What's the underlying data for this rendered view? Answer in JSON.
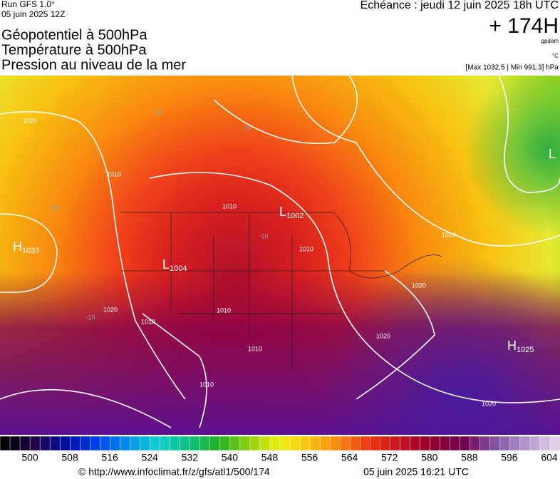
{
  "header": {
    "run": "Run GFS 1.0°",
    "date": "05 juin 2025 12Z",
    "titles": [
      "Géopotentiel à 500hPa",
      "Température à 500hPa",
      "Pression au niveau de la mer"
    ],
    "echeance": "Echéance : jeudi 12 juin 2025 18h UTC",
    "lead": "+ 174H",
    "unit_geo": "gpdam",
    "unit_temp": "°C",
    "range": "[Max 1032.5 | Min 991.3] hPa"
  },
  "map": {
    "centers": [
      {
        "letter": "H",
        "value": "1033"
      },
      {
        "letter": "L",
        "value": "1004"
      },
      {
        "letter": "L",
        "value": "1002"
      },
      {
        "letter": "H",
        "value": "1025"
      },
      {
        "letter": "L",
        "value": ""
      }
    ],
    "isobar_labels": [
      "1020",
      "1010",
      "1010",
      "1020",
      "1010",
      "1010",
      "1010",
      "1010",
      "1010",
      "1020",
      "1020",
      "1020",
      "1010"
    ],
    "temp_labels": [
      "-20",
      "-20",
      "-20",
      "-10",
      "-10"
    ]
  },
  "legend": {
    "labels": [
      "500",
      "508",
      "516",
      "524",
      "532",
      "540",
      "548",
      "556",
      "564",
      "572",
      "580",
      "588",
      "596",
      "604"
    ]
  },
  "footer": {
    "url": "© http://www.infoclimat.fr/z/gfs/atl1/500/174",
    "time": "05 juin 2025 16:21 UTC"
  }
}
